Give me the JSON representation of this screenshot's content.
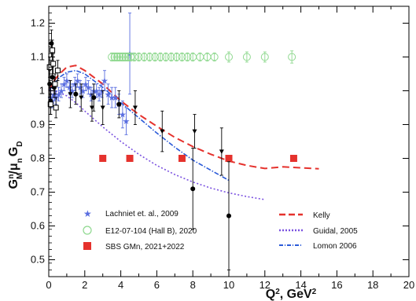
{
  "chart_data": {
    "type": "scatter",
    "xlabel_main": "Q",
    "xlabel_sup": "2",
    "xlabel_rest": ", GeV",
    "xlabel_sup2": "2",
    "ylabel_parts": {
      "g": "G",
      "gsup": "n",
      "gsub": "M",
      "slash": "/",
      "mu": "μ",
      "musub": "n",
      "gd": "G",
      "gdsub": "D"
    },
    "xlim": [
      0,
      20
    ],
    "ylim": [
      0.45,
      1.25
    ],
    "xticks": [
      0,
      2,
      4,
      6,
      8,
      10,
      12,
      14,
      16,
      18,
      20
    ],
    "yticks": [
      0.5,
      0.6,
      0.7,
      0.8,
      0.9,
      1.0,
      1.1,
      1.2
    ],
    "ytick_labels": [
      "0.5",
      "0.6",
      "0.7",
      "0.8",
      "0.9",
      "1",
      "1.1",
      "1.2"
    ],
    "legend_left": [
      {
        "label": "Lachniet et. al., 2009",
        "marker": "star",
        "color": "#5a6ee0"
      },
      {
        "label": "E12-07-104 (Hall B), 2020",
        "marker": "open-circle",
        "color": "#8ed88e"
      },
      {
        "label": "SBS GMn, 2021+2022",
        "marker": "square",
        "color": "#e5322d"
      }
    ],
    "legend_right": [
      {
        "label": "Kelly",
        "style": "dashed",
        "color": "#e5322d"
      },
      {
        "label": "Guidal, 2005",
        "style": "dotted",
        "color": "#7b52e0"
      },
      {
        "label": "Lomon 2006",
        "style": "dashdot",
        "color": "#2a5ad8"
      }
    ],
    "series": [
      {
        "name": "Kelly",
        "kind": "curve",
        "style": "dashed",
        "color": "#e5322d",
        "x": [
          0,
          0.3,
          0.6,
          1.0,
          1.5,
          2.0,
          3.0,
          4.0,
          5.0,
          6.0,
          7.0,
          8.0,
          9.0,
          10.0,
          11.0,
          12.0,
          13.0,
          14.0,
          15.0
        ],
        "y": [
          1.0,
          1.03,
          1.05,
          1.07,
          1.075,
          1.06,
          1.02,
          0.97,
          0.93,
          0.895,
          0.862,
          0.835,
          0.812,
          0.792,
          0.779,
          0.77,
          0.775,
          0.772,
          0.769
        ]
      },
      {
        "name": "Guidal, 2005",
        "kind": "curve",
        "style": "dotted",
        "color": "#7b52e0",
        "x": [
          0,
          0.3,
          0.6,
          1.0,
          1.5,
          2.0,
          3.0,
          4.0,
          5.0,
          6.0,
          7.0,
          8.0,
          9.0,
          10.0,
          11.0,
          12.0
        ],
        "y": [
          1.0,
          1.0,
          0.995,
          0.985,
          0.965,
          0.94,
          0.893,
          0.85,
          0.812,
          0.779,
          0.752,
          0.73,
          0.712,
          0.698,
          0.687,
          0.678
        ]
      },
      {
        "name": "Lomon 2006",
        "kind": "curve",
        "style": "dashdot",
        "color": "#2a5ad8",
        "x": [
          0,
          0.3,
          0.6,
          1.0,
          1.5,
          2.0,
          3.0,
          4.0,
          5.0,
          6.0,
          7.0,
          8.0,
          9.0,
          10.0
        ],
        "y": [
          1.0,
          1.02,
          1.04,
          1.055,
          1.06,
          1.05,
          1.01,
          0.965,
          0.92,
          0.875,
          0.833,
          0.795,
          0.765,
          0.735
        ]
      },
      {
        "name": "Lachniet et. al., 2009",
        "kind": "points",
        "marker": "star",
        "color": "#5a6ee0",
        "points": [
          {
            "x": 0.12,
            "y": 0.98,
            "e": 0.03
          },
          {
            "x": 0.2,
            "y": 0.97,
            "e": 0.02
          },
          {
            "x": 0.3,
            "y": 0.99,
            "e": 0.02
          },
          {
            "x": 0.4,
            "y": 0.98,
            "e": 0.02
          },
          {
            "x": 0.55,
            "y": 0.99,
            "e": 0.02
          },
          {
            "x": 0.7,
            "y": 1.0,
            "e": 0.02
          },
          {
            "x": 0.85,
            "y": 1.02,
            "e": 0.02
          },
          {
            "x": 1.0,
            "y": 1.03,
            "e": 0.02
          },
          {
            "x": 1.15,
            "y": 1.01,
            "e": 0.02
          },
          {
            "x": 1.3,
            "y": 1.0,
            "e": 0.02
          },
          {
            "x": 1.45,
            "y": 1.02,
            "e": 0.02
          },
          {
            "x": 1.6,
            "y": 1.03,
            "e": 0.02
          },
          {
            "x": 1.75,
            "y": 1.01,
            "e": 0.02
          },
          {
            "x": 1.9,
            "y": 1.0,
            "e": 0.02
          },
          {
            "x": 2.05,
            "y": 1.02,
            "e": 0.02
          },
          {
            "x": 2.2,
            "y": 1.01,
            "e": 0.02
          },
          {
            "x": 2.35,
            "y": 0.99,
            "e": 0.02
          },
          {
            "x": 2.5,
            "y": 1.0,
            "e": 0.02
          },
          {
            "x": 2.65,
            "y": 1.0,
            "e": 0.02
          },
          {
            "x": 2.8,
            "y": 0.99,
            "e": 0.02
          },
          {
            "x": 2.95,
            "y": 1.0,
            "e": 0.02
          },
          {
            "x": 3.1,
            "y": 1.03,
            "e": 0.03
          },
          {
            "x": 3.3,
            "y": 0.99,
            "e": 0.03
          },
          {
            "x": 3.5,
            "y": 0.98,
            "e": 0.03
          },
          {
            "x": 3.7,
            "y": 0.98,
            "e": 0.03
          },
          {
            "x": 3.9,
            "y": 0.96,
            "e": 0.03
          },
          {
            "x": 4.1,
            "y": 0.93,
            "e": 0.04
          },
          {
            "x": 4.3,
            "y": 0.91,
            "e": 0.04
          },
          {
            "x": 4.5,
            "y": 1.11,
            "e": 0.12
          }
        ]
      },
      {
        "name": "E12-07-104 (Hall B), 2020",
        "kind": "points",
        "marker": "open-circle",
        "color": "#8ed88e",
        "points": [
          {
            "x": 3.5,
            "y": 1.1,
            "e": 0.012
          },
          {
            "x": 3.65,
            "y": 1.1,
            "e": 0.012
          },
          {
            "x": 3.8,
            "y": 1.1,
            "e": 0.012
          },
          {
            "x": 3.95,
            "y": 1.1,
            "e": 0.012
          },
          {
            "x": 4.1,
            "y": 1.1,
            "e": 0.012
          },
          {
            "x": 4.25,
            "y": 1.1,
            "e": 0.012
          },
          {
            "x": 4.4,
            "y": 1.1,
            "e": 0.012
          },
          {
            "x": 4.55,
            "y": 1.1,
            "e": 0.012
          },
          {
            "x": 4.75,
            "y": 1.1,
            "e": 0.012
          },
          {
            "x": 5.0,
            "y": 1.1,
            "e": 0.012
          },
          {
            "x": 5.3,
            "y": 1.1,
            "e": 0.012
          },
          {
            "x": 5.6,
            "y": 1.1,
            "e": 0.012
          },
          {
            "x": 5.9,
            "y": 1.1,
            "e": 0.012
          },
          {
            "x": 6.2,
            "y": 1.1,
            "e": 0.012
          },
          {
            "x": 6.5,
            "y": 1.1,
            "e": 0.012
          },
          {
            "x": 6.8,
            "y": 1.1,
            "e": 0.012
          },
          {
            "x": 7.1,
            "y": 1.1,
            "e": 0.012
          },
          {
            "x": 7.4,
            "y": 1.1,
            "e": 0.012
          },
          {
            "x": 7.7,
            "y": 1.1,
            "e": 0.012
          },
          {
            "x": 8.0,
            "y": 1.1,
            "e": 0.012
          },
          {
            "x": 8.4,
            "y": 1.1,
            "e": 0.012
          },
          {
            "x": 8.8,
            "y": 1.1,
            "e": 0.012
          },
          {
            "x": 9.2,
            "y": 1.1,
            "e": 0.012
          },
          {
            "x": 10.0,
            "y": 1.1,
            "e": 0.015
          },
          {
            "x": 11.0,
            "y": 1.1,
            "e": 0.015
          },
          {
            "x": 12.0,
            "y": 1.1,
            "e": 0.015
          },
          {
            "x": 13.5,
            "y": 1.1,
            "e": 0.018
          }
        ]
      },
      {
        "name": "SBS GMn, 2021+2022",
        "kind": "points",
        "marker": "square",
        "color": "#e5322d",
        "points": [
          {
            "x": 3.0,
            "y": 0.8,
            "e": 0.0
          },
          {
            "x": 4.5,
            "y": 0.8,
            "e": 0.0
          },
          {
            "x": 7.4,
            "y": 0.8,
            "e": 0.0
          },
          {
            "x": 10.0,
            "y": 0.8,
            "e": 0.0
          },
          {
            "x": 13.6,
            "y": 0.8,
            "e": 0.0
          }
        ]
      },
      {
        "name": "black-circles",
        "kind": "points",
        "marker": "filled-circle",
        "color": "#000000",
        "points": [
          {
            "x": 0.05,
            "y": 1.02,
            "e": 0.04
          },
          {
            "x": 0.1,
            "y": 0.97,
            "e": 0.04
          },
          {
            "x": 0.15,
            "y": 1.14,
            "e": 0.04
          },
          {
            "x": 0.2,
            "y": 1.04,
            "e": 0.03
          },
          {
            "x": 0.3,
            "y": 1.01,
            "e": 0.03
          },
          {
            "x": 1.5,
            "y": 0.99,
            "e": 0.03
          },
          {
            "x": 2.5,
            "y": 0.98,
            "e": 0.04
          },
          {
            "x": 3.9,
            "y": 0.96,
            "e": 0.04
          }
        ]
      },
      {
        "name": "black-open-squares",
        "kind": "points",
        "marker": "open-square",
        "color": "#000000",
        "points": [
          {
            "x": 0.05,
            "y": 1.07,
            "e": 0.03
          },
          {
            "x": 0.1,
            "y": 0.96,
            "e": 0.03
          },
          {
            "x": 0.2,
            "y": 1.12,
            "e": 0.03
          },
          {
            "x": 0.25,
            "y": 1.08,
            "e": 0.03
          },
          {
            "x": 0.35,
            "y": 1.02,
            "e": 0.03
          },
          {
            "x": 0.4,
            "y": 0.95,
            "e": 0.03
          },
          {
            "x": 0.5,
            "y": 1.06,
            "e": 0.03
          }
        ]
      },
      {
        "name": "black-triangles",
        "kind": "points",
        "marker": "down-triangle",
        "color": "#000000",
        "points": [
          {
            "x": 1.2,
            "y": 0.99,
            "e": 0.04
          },
          {
            "x": 1.8,
            "y": 0.98,
            "e": 0.04
          },
          {
            "x": 2.4,
            "y": 0.95,
            "e": 0.04
          },
          {
            "x": 3.0,
            "y": 0.95,
            "e": 0.05
          },
          {
            "x": 4.8,
            "y": 0.95,
            "e": 0.05
          },
          {
            "x": 6.3,
            "y": 0.88,
            "e": 0.06
          },
          {
            "x": 8.1,
            "y": 0.88,
            "e": 0.05
          },
          {
            "x": 9.6,
            "y": 0.82,
            "e": 0.07
          }
        ]
      },
      {
        "name": "black-dots-large-err",
        "kind": "points",
        "marker": "filled-circle",
        "color": "#000000",
        "points": [
          {
            "x": 8.0,
            "y": 0.71,
            "e": 0.12
          },
          {
            "x": 10.0,
            "y": 0.63,
            "e": 0.16
          }
        ]
      }
    ]
  }
}
